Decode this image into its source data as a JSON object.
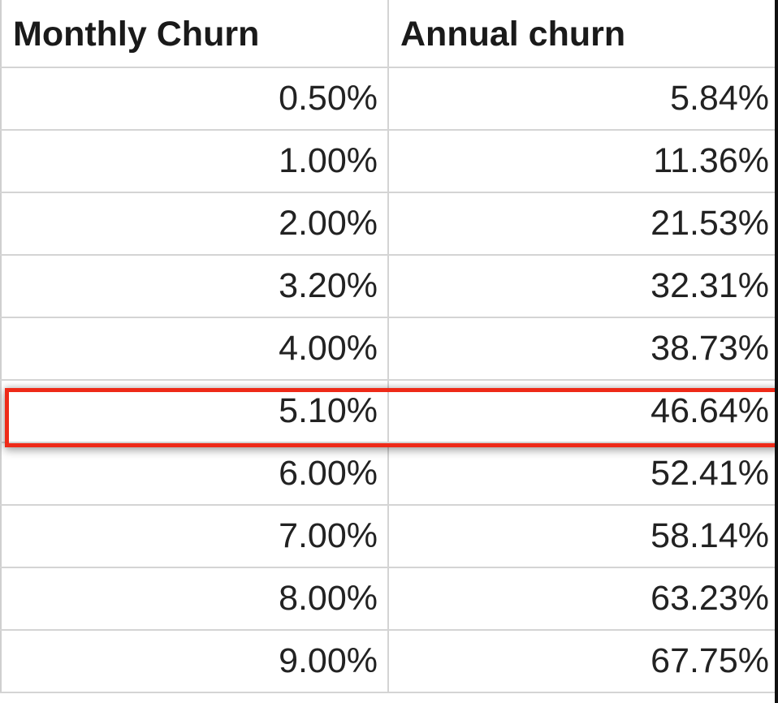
{
  "table": {
    "headers": [
      "Monthly Churn",
      "Annual churn"
    ],
    "rows": [
      [
        "0.50%",
        "5.84%"
      ],
      [
        "1.00%",
        "11.36%"
      ],
      [
        "2.00%",
        "21.53%"
      ],
      [
        "3.20%",
        "32.31%"
      ],
      [
        "4.00%",
        "38.73%"
      ],
      [
        "5.10%",
        "46.64%"
      ],
      [
        "6.00%",
        "52.41%"
      ],
      [
        "7.00%",
        "58.14%"
      ],
      [
        "8.00%",
        "63.23%"
      ],
      [
        "9.00%",
        "67.75%"
      ]
    ],
    "highlighted_row_index": 5,
    "highlight_color": "#ee2a18"
  }
}
